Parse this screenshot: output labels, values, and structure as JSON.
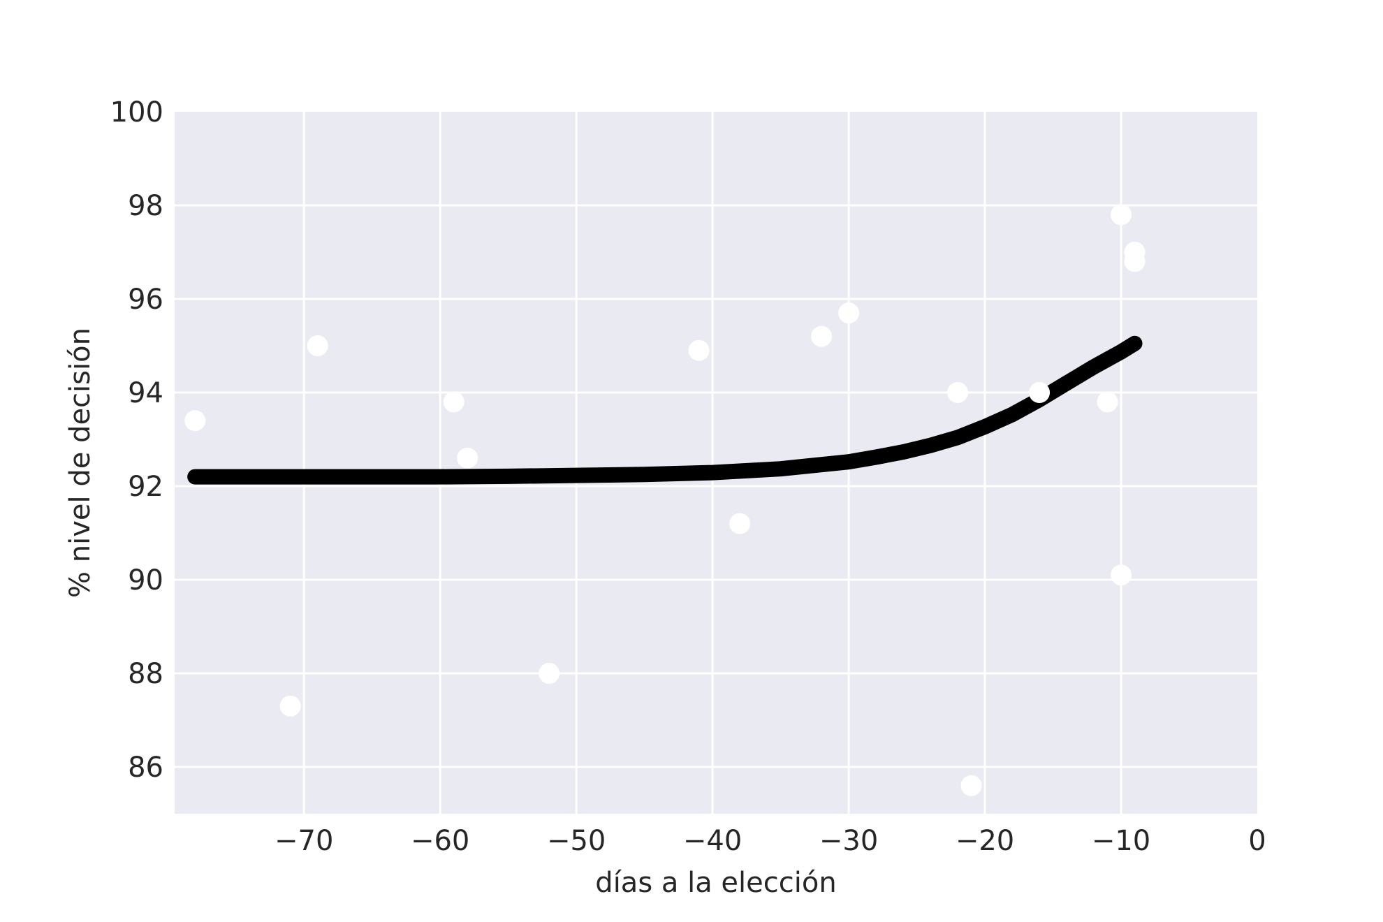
{
  "chart_data": {
    "type": "scatter",
    "title": "",
    "xlabel": "días a la elección",
    "ylabel": "% nivel de decisión",
    "xlim": [
      -79.5,
      0
    ],
    "ylim": [
      85,
      100
    ],
    "xticks": [
      -70,
      -60,
      -50,
      -40,
      -30,
      -20,
      -10,
      0
    ],
    "xtick_labels": [
      "−70",
      "−60",
      "−50",
      "−40",
      "−30",
      "−20",
      "−10",
      "0"
    ],
    "yticks": [
      86,
      88,
      90,
      92,
      94,
      96,
      98,
      100
    ],
    "ytick_labels": [
      "86",
      "88",
      "90",
      "92",
      "94",
      "96",
      "98",
      "100"
    ],
    "grid": true,
    "background_color": "#eaeaf2",
    "grid_color": "#ffffff",
    "series": [
      {
        "kind": "scatter",
        "color": "#ffffff",
        "x": [
          -78,
          -71,
          -69,
          -59,
          -58,
          -52,
          -41,
          -38,
          -32,
          -30,
          -22,
          -21,
          -16,
          -11,
          -10,
          -10,
          -9,
          -9
        ],
        "y": [
          93.4,
          87.3,
          95.0,
          93.8,
          92.6,
          88.0,
          94.9,
          91.2,
          95.2,
          95.7,
          94.0,
          85.6,
          94.0,
          93.8,
          97.8,
          90.1,
          97.0,
          96.8
        ]
      },
      {
        "kind": "line",
        "color": "#000000",
        "x": [
          -78,
          -75,
          -70,
          -65,
          -60,
          -55,
          -50,
          -45,
          -40,
          -35,
          -30,
          -28,
          -26,
          -24,
          -22,
          -20,
          -18,
          -16,
          -14,
          -12,
          -10,
          -9
        ],
        "y": [
          92.2,
          92.2,
          92.2,
          92.2,
          92.2,
          92.21,
          92.23,
          92.25,
          92.29,
          92.37,
          92.52,
          92.62,
          92.73,
          92.87,
          93.04,
          93.27,
          93.53,
          93.85,
          94.2,
          94.55,
          94.87,
          95.05
        ]
      }
    ]
  }
}
